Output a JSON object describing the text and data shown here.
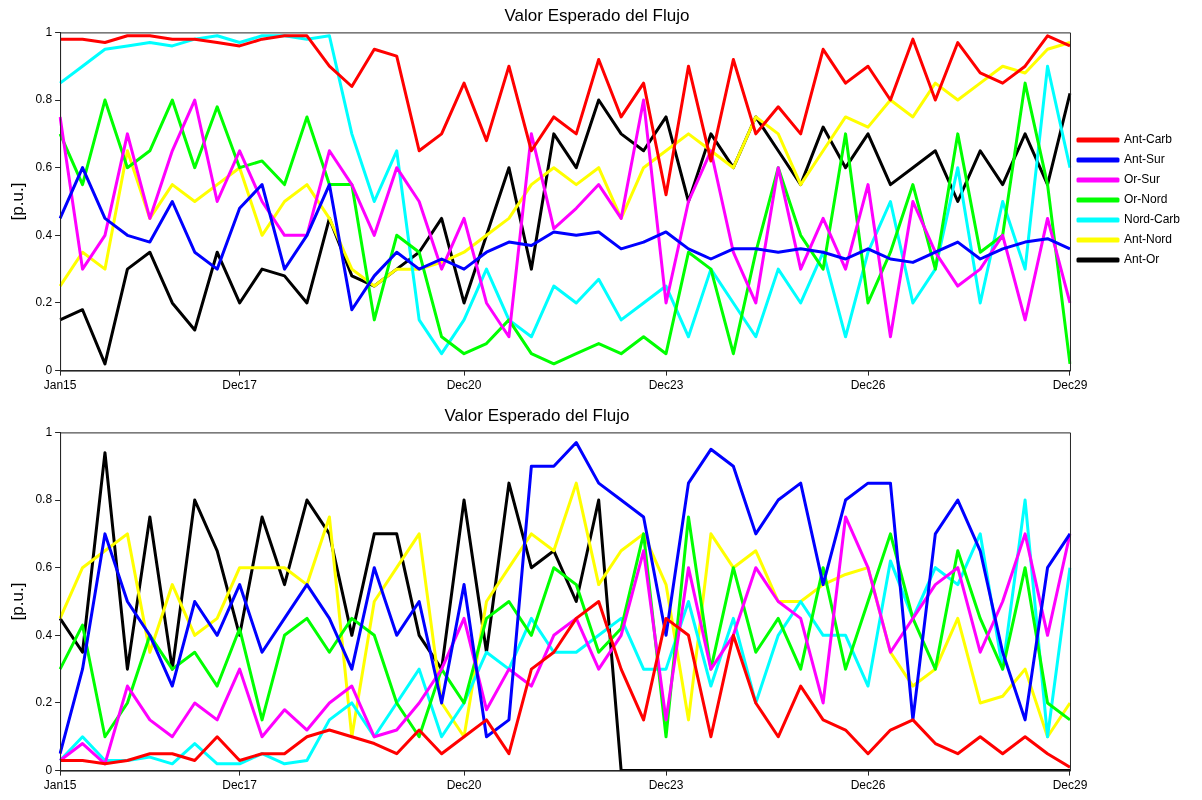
{
  "chart_data": [
    {
      "type": "line",
      "title": "Valor Esperado del Flujo",
      "ylabel": "[p.u.]",
      "legend": "right",
      "grid": false,
      "categories": [
        "Jan15",
        null,
        null,
        null,
        null,
        null,
        null,
        null,
        "Dec17",
        null,
        null,
        null,
        null,
        null,
        null,
        null,
        null,
        null,
        "Dec20",
        null,
        null,
        null,
        null,
        null,
        null,
        null,
        null,
        "Dec23",
        null,
        null,
        null,
        null,
        null,
        null,
        null,
        null,
        "Dec26",
        null,
        null,
        null,
        null,
        null,
        null,
        null,
        null,
        "Dec29"
      ],
      "ylim": [
        0,
        1
      ],
      "yticks": [
        0,
        0.2,
        0.4,
        0.6,
        0.8,
        1
      ],
      "series": [
        {
          "name": "Ant-Carb",
          "color": "#ff0000",
          "values": [
            0.98,
            0.98,
            0.97,
            0.99,
            0.99,
            0.98,
            0.98,
            0.97,
            0.96,
            0.98,
            0.99,
            0.99,
            0.9,
            0.84,
            0.95,
            0.93,
            0.65,
            0.7,
            0.85,
            0.68,
            0.9,
            0.65,
            0.75,
            0.7,
            0.92,
            0.75,
            0.85,
            0.52,
            0.9,
            0.62,
            0.92,
            0.7,
            0.78,
            0.7,
            0.95,
            0.85,
            0.9,
            0.8,
            0.98,
            0.8,
            0.97,
            0.88,
            0.85,
            0.9,
            0.99,
            0.96
          ]
        },
        {
          "name": "Ant-Sur",
          "color": "#0000ff",
          "values": [
            0.45,
            0.6,
            0.45,
            0.4,
            0.38,
            0.5,
            0.35,
            0.3,
            0.48,
            0.55,
            0.3,
            0.4,
            0.55,
            0.18,
            0.28,
            0.35,
            0.3,
            0.33,
            0.3,
            0.35,
            0.38,
            0.37,
            0.41,
            0.4,
            0.41,
            0.36,
            0.38,
            0.41,
            0.36,
            0.33,
            0.36,
            0.36,
            0.35,
            0.36,
            0.35,
            0.33,
            0.36,
            0.33,
            0.32,
            0.35,
            0.38,
            0.33,
            0.36,
            0.38,
            0.39,
            0.36
          ]
        },
        {
          "name": "Or-Sur",
          "color": "#ff00ff",
          "values": [
            0.75,
            0.3,
            0.4,
            0.7,
            0.45,
            0.65,
            0.8,
            0.5,
            0.65,
            0.5,
            0.4,
            0.4,
            0.65,
            0.55,
            0.4,
            0.6,
            0.5,
            0.3,
            0.45,
            0.2,
            0.1,
            0.7,
            0.42,
            0.48,
            0.55,
            0.45,
            0.8,
            0.2,
            0.5,
            0.65,
            0.35,
            0.2,
            0.6,
            0.3,
            0.45,
            0.3,
            0.55,
            0.1,
            0.5,
            0.35,
            0.25,
            0.3,
            0.4,
            0.15,
            0.45,
            0.2
          ]
        },
        {
          "name": "Or-Nord",
          "color": "#00ff00",
          "values": [
            0.7,
            0.55,
            0.8,
            0.6,
            0.65,
            0.8,
            0.6,
            0.78,
            0.6,
            0.62,
            0.55,
            0.75,
            0.55,
            0.55,
            0.15,
            0.4,
            0.35,
            0.1,
            0.05,
            0.08,
            0.15,
            0.05,
            0.02,
            0.05,
            0.08,
            0.05,
            0.1,
            0.05,
            0.35,
            0.3,
            0.05,
            0.35,
            0.6,
            0.4,
            0.3,
            0.7,
            0.2,
            0.35,
            0.55,
            0.3,
            0.7,
            0.35,
            0.4,
            0.85,
            0.55,
            0.02
          ]
        },
        {
          "name": "Nord-Carb",
          "color": "#00ffff",
          "values": [
            0.85,
            0.9,
            0.95,
            0.96,
            0.97,
            0.96,
            0.98,
            0.99,
            0.97,
            0.99,
            0.99,
            0.98,
            0.99,
            0.7,
            0.5,
            0.65,
            0.15,
            0.05,
            0.15,
            0.3,
            0.15,
            0.1,
            0.25,
            0.2,
            0.27,
            0.15,
            0.2,
            0.25,
            0.1,
            0.3,
            0.2,
            0.1,
            0.3,
            0.2,
            0.35,
            0.1,
            0.35,
            0.5,
            0.2,
            0.3,
            0.6,
            0.2,
            0.5,
            0.3,
            0.9,
            0.6
          ]
        },
        {
          "name": "Ant-Nord",
          "color": "#ffff00",
          "values": [
            0.25,
            0.35,
            0.3,
            0.65,
            0.45,
            0.55,
            0.5,
            0.55,
            0.6,
            0.4,
            0.5,
            0.55,
            0.45,
            0.3,
            0.25,
            0.3,
            0.3,
            0.32,
            0.35,
            0.4,
            0.45,
            0.55,
            0.6,
            0.55,
            0.6,
            0.45,
            0.6,
            0.65,
            0.7,
            0.65,
            0.6,
            0.75,
            0.7,
            0.55,
            0.65,
            0.75,
            0.72,
            0.8,
            0.75,
            0.85,
            0.8,
            0.85,
            0.9,
            0.88,
            0.95,
            0.97
          ]
        },
        {
          "name": "Ant-Or",
          "color": "#000000",
          "values": [
            0.15,
            0.18,
            0.02,
            0.3,
            0.35,
            0.2,
            0.12,
            0.35,
            0.2,
            0.3,
            0.28,
            0.2,
            0.45,
            0.28,
            0.25,
            0.3,
            0.35,
            0.45,
            0.2,
            0.4,
            0.6,
            0.3,
            0.7,
            0.6,
            0.8,
            0.7,
            0.65,
            0.75,
            0.5,
            0.7,
            0.6,
            0.75,
            0.65,
            0.55,
            0.72,
            0.6,
            0.7,
            0.55,
            0.6,
            0.65,
            0.5,
            0.65,
            0.55,
            0.7,
            0.55,
            0.82
          ]
        }
      ]
    },
    {
      "type": "line",
      "title": "Valor Esperado del Flujo",
      "ylabel": "[p.u.]",
      "grid": false,
      "categories": [
        "Jan15",
        null,
        null,
        null,
        null,
        null,
        null,
        null,
        "Dec17",
        null,
        null,
        null,
        null,
        null,
        null,
        null,
        null,
        null,
        "Dec20",
        null,
        null,
        null,
        null,
        null,
        null,
        null,
        null,
        "Dec23",
        null,
        null,
        null,
        null,
        null,
        null,
        null,
        null,
        "Dec26",
        null,
        null,
        null,
        null,
        null,
        null,
        null,
        null,
        "Dec29"
      ],
      "ylim": [
        0,
        1
      ],
      "yticks": [
        0,
        0.2,
        0.4,
        0.6,
        0.8,
        1
      ],
      "series": [
        {
          "color": "#ff0000",
          "values": [
            0.03,
            0.03,
            0.02,
            0.03,
            0.05,
            0.05,
            0.03,
            0.1,
            0.03,
            0.05,
            0.05,
            0.1,
            0.12,
            0.1,
            0.08,
            0.05,
            0.12,
            0.05,
            0.1,
            0.15,
            0.05,
            0.3,
            0.35,
            0.45,
            0.5,
            0.3,
            0.15,
            0.45,
            0.4,
            0.1,
            0.4,
            0.2,
            0.1,
            0.25,
            0.15,
            0.12,
            0.05,
            0.12,
            0.15,
            0.08,
            0.05,
            0.1,
            0.05,
            0.1,
            0.05,
            0.01
          ]
        },
        {
          "color": "#0000ff",
          "values": [
            0.05,
            0.3,
            0.7,
            0.5,
            0.4,
            0.25,
            0.5,
            0.4,
            0.55,
            0.35,
            0.45,
            0.55,
            0.45,
            0.3,
            0.6,
            0.4,
            0.5,
            0.2,
            0.55,
            0.1,
            0.15,
            0.9,
            0.9,
            0.97,
            0.85,
            0.8,
            0.75,
            0.4,
            0.85,
            0.95,
            0.9,
            0.7,
            0.8,
            0.85,
            0.55,
            0.8,
            0.85,
            0.85,
            0.15,
            0.7,
            0.8,
            0.65,
            0.35,
            0.15,
            0.6,
            0.7
          ]
        },
        {
          "color": "#ff00ff",
          "values": [
            0.03,
            0.08,
            0.02,
            0.25,
            0.15,
            0.1,
            0.2,
            0.15,
            0.3,
            0.1,
            0.18,
            0.12,
            0.2,
            0.25,
            0.1,
            0.12,
            0.2,
            0.3,
            0.45,
            0.18,
            0.3,
            0.25,
            0.4,
            0.45,
            0.3,
            0.4,
            0.65,
            0.15,
            0.6,
            0.3,
            0.4,
            0.6,
            0.5,
            0.45,
            0.2,
            0.75,
            0.6,
            0.35,
            0.45,
            0.55,
            0.6,
            0.35,
            0.5,
            0.7,
            0.4,
            0.7
          ]
        },
        {
          "color": "#00ff00",
          "values": [
            0.3,
            0.43,
            0.1,
            0.2,
            0.4,
            0.3,
            0.35,
            0.25,
            0.42,
            0.15,
            0.4,
            0.45,
            0.35,
            0.45,
            0.4,
            0.2,
            0.1,
            0.3,
            0.2,
            0.45,
            0.5,
            0.4,
            0.6,
            0.55,
            0.35,
            0.42,
            0.7,
            0.1,
            0.75,
            0.3,
            0.6,
            0.35,
            0.45,
            0.3,
            0.6,
            0.3,
            0.5,
            0.7,
            0.45,
            0.3,
            0.65,
            0.45,
            0.3,
            0.6,
            0.2,
            0.15
          ]
        },
        {
          "color": "#00ffff",
          "values": [
            0.03,
            0.1,
            0.03,
            0.03,
            0.04,
            0.02,
            0.08,
            0.02,
            0.02,
            0.05,
            0.02,
            0.03,
            0.15,
            0.2,
            0.1,
            0.2,
            0.3,
            0.1,
            0.2,
            0.35,
            0.3,
            0.45,
            0.35,
            0.35,
            0.4,
            0.45,
            0.3,
            0.3,
            0.5,
            0.25,
            0.45,
            0.2,
            0.4,
            0.5,
            0.4,
            0.4,
            0.25,
            0.62,
            0.45,
            0.6,
            0.55,
            0.7,
            0.3,
            0.8,
            0.1,
            0.6
          ]
        },
        {
          "color": "#ffff00",
          "values": [
            0.45,
            0.6,
            0.65,
            0.7,
            0.35,
            0.55,
            0.4,
            0.45,
            0.6,
            0.6,
            0.6,
            0.55,
            0.75,
            0.1,
            0.5,
            0.6,
            0.7,
            0.2,
            0.1,
            0.5,
            0.6,
            0.7,
            0.65,
            0.85,
            0.55,
            0.65,
            0.7,
            0.55,
            0.15,
            0.7,
            0.6,
            0.65,
            0.5,
            0.5,
            0.55,
            0.58,
            0.6,
            0.35,
            0.25,
            0.3,
            0.45,
            0.2,
            0.22,
            0.3,
            0.1,
            0.2
          ]
        },
        {
          "color": "#000000",
          "values": [
            0.45,
            0.35,
            0.94,
            0.3,
            0.75,
            0.3,
            0.8,
            0.65,
            0.4,
            0.75,
            0.55,
            0.8,
            0.7,
            0.4,
            0.7,
            0.7,
            0.4,
            0.3,
            0.8,
            0.35,
            0.85,
            0.6,
            0.65,
            0.5,
            0.8,
            0,
            0,
            0,
            0,
            0,
            0,
            0,
            0,
            0,
            0,
            0,
            0,
            0,
            0,
            0,
            0,
            0,
            0,
            0,
            0,
            0
          ]
        }
      ]
    }
  ]
}
